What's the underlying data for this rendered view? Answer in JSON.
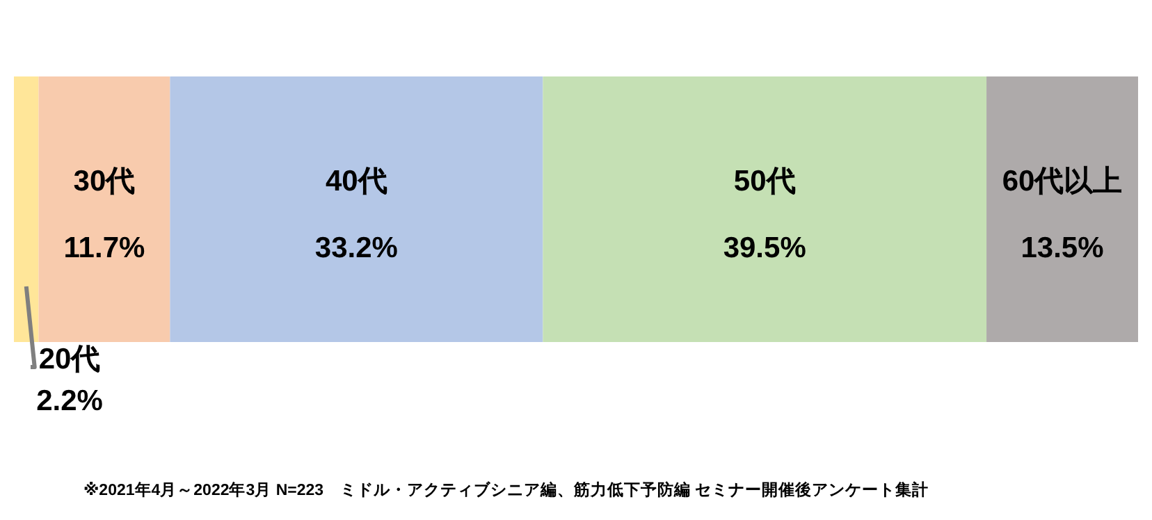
{
  "chart_data": {
    "type": "bar",
    "orientation": "horizontal",
    "stacked": true,
    "categories": [
      null
    ],
    "series": [
      {
        "name": "20代",
        "color": "#ffe699",
        "values": [
          2.2
        ],
        "value_labels": [
          "2.2%"
        ]
      },
      {
        "name": "30代",
        "color": "#f8cbad",
        "values": [
          11.7
        ],
        "value_labels": [
          "11.7%"
        ]
      },
      {
        "name": "40代",
        "color": "#b4c7e7",
        "values": [
          33.2
        ],
        "value_labels": [
          "33.2%"
        ]
      },
      {
        "name": "50代",
        "color": "#c5e0b4",
        "values": [
          39.5
        ],
        "value_labels": [
          "39.5%"
        ]
      },
      {
        "name": "60代以上",
        "color": "#aeaaaa",
        "values": [
          13.5
        ],
        "value_labels": [
          "13.5%"
        ]
      }
    ],
    "annotations": [
      "※2021年4月～2022年3月 N=223　ミドル・アクティブシニア編、筋力低下予防編 セミナー開催後アンケート集計"
    ]
  }
}
